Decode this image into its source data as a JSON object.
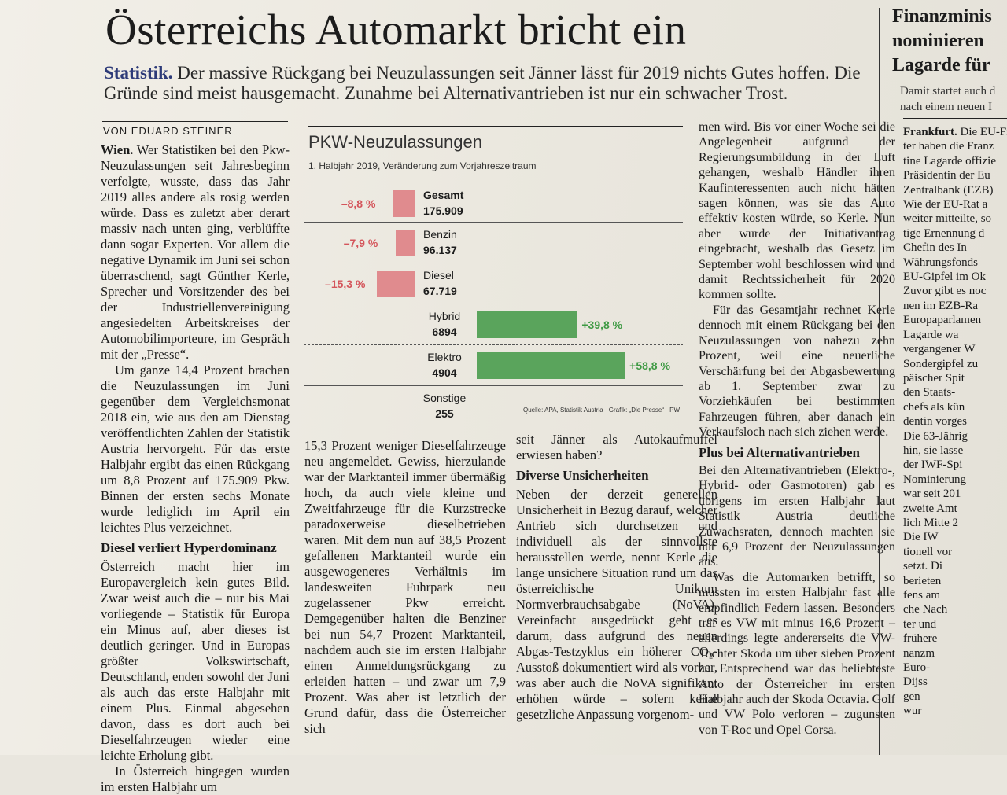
{
  "headline": "Österreichs Automarkt bricht ein",
  "lead": {
    "keyword": "Statistik.",
    "text": " Der massive Rückgang bei Neuzulassungen seit Jänner lässt für 2019 nichts Gutes hoffen. Die Gründe sind meist hausgemacht. Zunahme bei Alternativantrieben ist nur ein schwacher Trost."
  },
  "byline": "VON EDUARD STEINER",
  "col1": {
    "p1_loc": "Wien.",
    "p1": " Wer Statistiken bei den Pkw-Neuzulassungen seit Jahresbeginn verfolgte, wusste, dass das Jahr 2019 alles andere als rosig werden würde. Dass es zuletzt aber derart massiv nach unten ging, verblüffte dann sogar Experten. Vor allem die negative Dynamik im Juni sei schon überraschend, sagt Günther Kerle, Sprecher und Vorsitzender des bei der Industriellenvereinigung angesiedelten Arbeitskreises der Automobilimporteure, im Gespräch mit der „Presse“.",
    "p2": "Um ganze 14,4 Prozent brachen die Neuzulassungen im Juni gegenüber dem Vergleichsmonat 2018 ein, wie aus den am Dienstag veröffentlichten Zahlen der Statistik Austria hervorgeht. Für das erste Halbjahr ergibt das einen Rückgang um 8,8 Prozent auf 175.909 Pkw. Binnen der ersten sechs Monate wurde lediglich im April ein leichtes Plus verzeichnet.",
    "h": "Diesel verliert Hyperdominanz",
    "p3": "Österreich macht hier im Europavergleich kein gutes Bild. Zwar weist auch die – nur bis Mai vorliegende – Statistik für Europa ein Minus auf, aber dieses ist deutlich geringer. Und in Europas größter Volkswirtschaft, Deutschland, enden sowohl der Juni als auch das erste Halbjahr mit einem Plus. Einmal abgesehen davon, dass es dort auch bei Dieselfahrzeugen wieder eine leichte Erholung gibt.",
    "p4": "In Österreich hingegen wurden im ersten Halbjahr um"
  },
  "col2": {
    "p1": "15,3 Prozent weniger Dieselfahrzeuge neu angemeldet. Gewiss, hierzulande war der Marktanteil immer übermäßig hoch, da auch viele kleine und Zweitfahrzeuge für die Kurzstrecke paradoxerweise dieselbetrieben waren. Mit dem nun auf 38,5 Prozent gefallenen Marktanteil wurde ein ausgewogeneres Verhältnis im landesweiten Fuhrpark neu zugelassener Pkw erreicht. Demgegenüber halten die Benziner bei nun 54,7 Prozent Marktanteil, nachdem auch sie im ersten Halbjahr einen Anmeldungsrückgang zu erleiden hatten – und zwar um 7,9 Prozent. Was aber ist letztlich der Grund dafür, dass die Österreicher sich"
  },
  "col3": {
    "p0": "seit Jänner als Autokaufmuffel erwiesen haben?",
    "h": "Diverse Unsicherheiten",
    "p1": "Neben der derzeit generellen Unsicherheit in Bezug darauf, welcher Antrieb sich durchsetzen und individuell als der sinnvollste herausstellen werde, nennt Kerle die lange unsichere Situation rund um das österreichische Unikum Normverbrauchsabgabe (NoVA). Vereinfacht ausgedrückt geht es darum, dass aufgrund des neuen Abgas-Testzyklus ein höherer CO₂-Ausstoß dokumentiert wird als vorher, was aber auch die NoVA signifikant erhöhen würde – sofern keine gesetzliche Anpassung vorgenom-"
  },
  "col4": {
    "p0": "men wird. Bis vor einer Woche sei die Angelegenheit aufgrund der Regierungsumbildung in der Luft gehangen, weshalb Händler ihren Kaufinteressenten auch nicht hätten sagen können, was sie das Auto effektiv kosten würde, so Kerle. Nun aber wurde der Initiativantrag eingebracht, weshalb das Gesetz im September wohl beschlossen wird und damit Rechtssicherheit für 2020 kommen sollte.",
    "p1": "Für das Gesamtjahr rechnet Kerle dennoch mit einem Rückgang bei den Neuzulassungen von nahezu zehn Prozent, weil eine neuerliche Verschärfung bei der Abgasbewertung ab 1. September zwar zu Vorziehkäufen bei bestimmten Fahrzeugen führen, aber danach ein Verkaufsloch nach sich ziehen werde.",
    "h": "Plus bei Alternativantrieben",
    "p2": "Bei den Alternativantrieben (Elektro-, Hybrid- oder Gasmotoren) gab es übrigens im ersten Halbjahr laut Statistik Austria deutliche Zuwachsraten, dennoch machten sie nur 6,9 Prozent der Neuzulassungen aus.",
    "p3": "Was die Automarken betrifft, so mussten im ersten Halbjahr fast alle empfindlich Federn lassen. Besonders traf es VW mit minus 16,6 Prozent – allerdings legte andererseits die VW-Tochter Skoda um über sieben Prozent zu. Entsprechend war das beliebteste Auto der Österreicher im ersten Halbjahr auch der Skoda Octavia. Golf und VW Polo verloren – zugunsten von T-Roc und Opel Corsa."
  },
  "right": {
    "title_lines": [
      "Finanzminis",
      "nominieren",
      "Lagarde für"
    ],
    "lead_lines": [
      "Damit startet auch d",
      "nach einem neuen I"
    ],
    "body_loc": "Frankfurt.",
    "body_lines": [
      " Die EU-Fi",
      "ter haben die Franz",
      "tine Lagarde offizie",
      "Präsidentin der Eu",
      "Zentralbank (EZB)",
      "Wie der EU-Rat a",
      "weiter mitteilte, so",
      "tige Ernennung d",
      "Chefin des In",
      "Währungsfonds",
      "EU-Gipfel im Ok",
      "Zuvor gibt es noc",
      "nen im EZB-Ra",
      "Europaparlamen",
      "Lagarde wa",
      "vergangener W",
      "Sondergipfel zu",
      "päischer Spit",
      "den Staats-",
      "chefs als kün",
      "dentin vorges",
      "Die 63-Jährig",
      "hin, sie lasse",
      "der IWF-Spi",
      "Nominierung",
      "war seit 201",
      "zweite Amt",
      "lich Mitte 2",
      "Die IW",
      "tionell vor",
      "setzt. Di",
      "berieten",
      "fens am",
      "che Nach",
      "ter und",
      "frühere",
      "nanzm",
      "Euro-",
      "Dijss",
      "gen",
      "wur"
    ]
  },
  "chart_data": {
    "type": "bar",
    "title": "PKW-Neuzulassungen",
    "subtitle": "1. Halbjahr 2019, Veränderung zum Vorjahreszeitraum",
    "categories": [
      "Gesamt",
      "Benzin",
      "Diesel",
      "Hybrid",
      "Elektro",
      "Sonstige"
    ],
    "values_pct": [
      -8.8,
      -7.9,
      -15.3,
      39.8,
      58.8,
      null
    ],
    "pct_labels": [
      "–8,8 %",
      "–7,9 %",
      "–15,3 %",
      "+39,8 %",
      "+58,8 %",
      ""
    ],
    "totals": [
      "175.909",
      "96.137",
      "67.719",
      "6894",
      "4904",
      "255"
    ],
    "source": "Quelle: APA, Statistik Austria · Grafik: „Die Presse“ · PW",
    "colors": {
      "negative": "#e08b8e",
      "positive": "#5aa45c"
    }
  }
}
